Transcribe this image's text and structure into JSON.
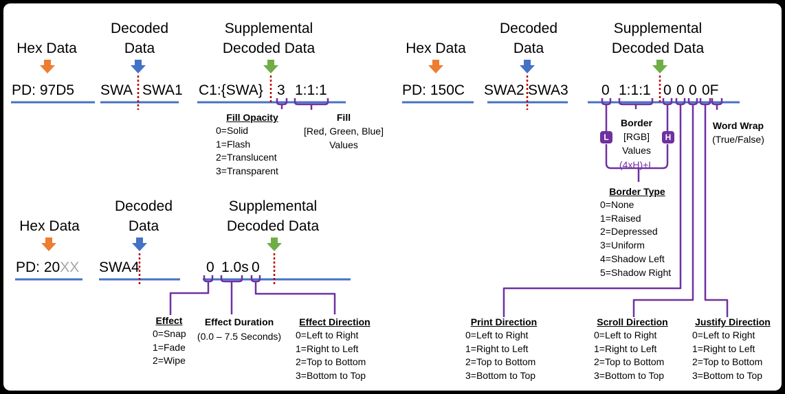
{
  "colors": {
    "hex_arrow": "#ed7d31",
    "decoded_arrow": "#4472c4",
    "supp_arrow": "#70ad47",
    "line": "#4472c4",
    "bracket": "#7030a0",
    "divider": "#c00000"
  },
  "top_left": {
    "hex_header": "Hex Data",
    "hex_value": "PD: 97D5",
    "decoded_header_1": "Decoded",
    "decoded_header_2": "Data",
    "decoded_left": "SWA",
    "decoded_right": "SWA1",
    "supp_header_1": "Supplemental",
    "supp_header_2": "Decoded Data",
    "supp_code": "C1:{SWA}",
    "supp_opacity_val": "3",
    "supp_fill_val": "1:1:1",
    "fill_opacity_title": "Fill Opacity",
    "fill_opacity_items": [
      "0=Solid",
      "1=Flash",
      "2=Translucent",
      "3=Transparent"
    ],
    "fill_title": "Fill",
    "fill_desc_1": "[Red, Green, Blue]",
    "fill_desc_2": "Values"
  },
  "top_right": {
    "hex_header": "Hex Data",
    "hex_value": "PD: 150C",
    "decoded_header_1": "Decoded",
    "decoded_header_2": "Data",
    "decoded_left": "SWA2",
    "decoded_right": "SWA3",
    "supp_header_1": "Supplemental",
    "supp_header_2": "Decoded Data",
    "v_bl": "0",
    "v_rgb": "1:1:1",
    "v_bh": "0",
    "v_pd": "0",
    "v_sd": "0",
    "v_0f": "0F",
    "badge_l": "L",
    "badge_h": "H",
    "border_title": "Border",
    "border_desc_1": "[RGB]",
    "border_desc_2": "Values",
    "border_formula": "(4xH)+L",
    "word_wrap_title": "Word Wrap",
    "word_wrap_desc": "(True/False)",
    "border_type_title": "Border Type",
    "border_type_items": [
      "0=None",
      "1=Raised",
      "2=Depressed",
      "3=Uniform",
      "4=Shadow Left",
      "5=Shadow Right"
    ],
    "print_dir_title": "Print Direction",
    "print_dir_items": [
      "0=Left to Right",
      "1=Right to Left",
      "2=Top to Bottom",
      "3=Bottom to Top"
    ],
    "scroll_dir_title": "Scroll Direction",
    "scroll_dir_items": [
      "0=Left to Right",
      "1=Right to Left",
      "2=Top to Bottom",
      "3=Bottom to Top"
    ],
    "justify_dir_title": "Justify Direction",
    "justify_dir_items": [
      "0=Left to Right",
      "1=Right to Left",
      "2=Top to Bottom",
      "3=Bottom to Top"
    ]
  },
  "bottom_left": {
    "hex_header": "Hex Data",
    "hex_value_prefix": "PD: 20",
    "hex_value_suffix": "XX",
    "decoded_header_1": "Decoded",
    "decoded_header_2": "Data",
    "decoded_value": "SWA4",
    "supp_header_1": "Supplemental",
    "supp_header_2": "Decoded Data",
    "v_effect": "0",
    "v_duration": "1.0s",
    "v_direction": "0",
    "effect_title": "Effect",
    "effect_items": [
      "0=Snap",
      "1=Fade",
      "2=Wipe"
    ],
    "duration_title": "Effect Duration",
    "duration_desc": "(0.0 – 7.5 Seconds)",
    "direction_title": "Effect Direction",
    "direction_items": [
      "0=Left to Right",
      "1=Right to Left",
      "2=Top to Bottom",
      "3=Bottom to Top"
    ]
  }
}
